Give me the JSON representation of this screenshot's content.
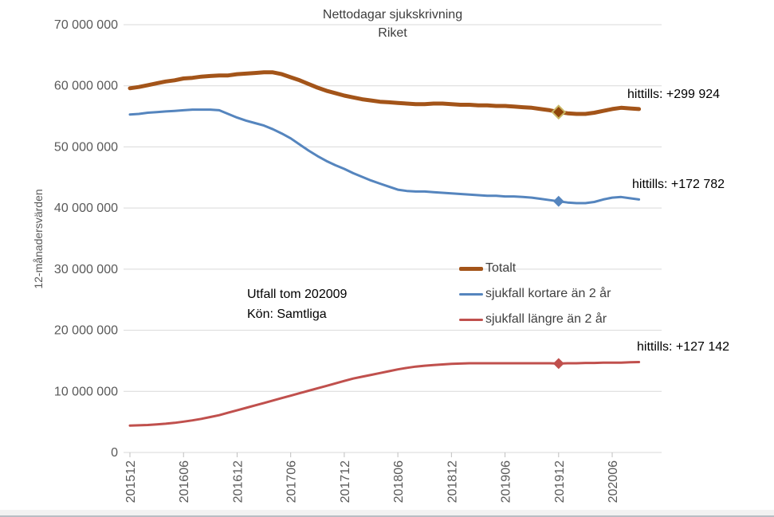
{
  "window": {
    "background": "#FFFFFF"
  },
  "chart_data": {
    "type": "line",
    "title": "Nettodagar sjukskrivning",
    "subtitle": "Riket",
    "ylabel": "12-månadersvärden",
    "xlabel": "",
    "grid": "horizontal",
    "legend_position": "center-right",
    "unit_multiplier": 1000000,
    "ylim_millions": [
      0,
      70
    ],
    "y_tick_values_millions": [
      0,
      10,
      20,
      30,
      40,
      50,
      60,
      70
    ],
    "y_tick_labels": [
      "0",
      "10 000 000",
      "20 000 000",
      "30 000 000",
      "40 000 000",
      "50 000 000",
      "60 000 000",
      "70 000 000"
    ],
    "x": [
      "201512",
      "201601",
      "201602",
      "201603",
      "201604",
      "201605",
      "201606",
      "201607",
      "201608",
      "201609",
      "201610",
      "201611",
      "201612",
      "201701",
      "201702",
      "201703",
      "201704",
      "201705",
      "201706",
      "201707",
      "201708",
      "201709",
      "201710",
      "201711",
      "201712",
      "201801",
      "201802",
      "201803",
      "201804",
      "201805",
      "201806",
      "201807",
      "201808",
      "201809",
      "201810",
      "201811",
      "201812",
      "201901",
      "201902",
      "201903",
      "201904",
      "201905",
      "201906",
      "201907",
      "201908",
      "201909",
      "201910",
      "201911",
      "201912",
      "202001",
      "202002",
      "202003",
      "202004",
      "202005",
      "202006",
      "202007",
      "202008",
      "202009"
    ],
    "x_ticks": [
      "201512",
      "201606",
      "201612",
      "201706",
      "201712",
      "201806",
      "201812",
      "201906",
      "201912",
      "202006"
    ],
    "marker_x": "201912",
    "series": [
      {
        "name": "Totalt",
        "color": "#A35419",
        "line_width": 5,
        "marker": {
          "shape": "diamond",
          "fill": "#8F450A",
          "stroke": "#C9B765",
          "size": 8
        },
        "annotation": "hittills: +299 924",
        "values_millions": [
          59.6,
          59.8,
          60.1,
          60.4,
          60.7,
          60.9,
          61.2,
          61.3,
          61.5,
          61.6,
          61.7,
          61.7,
          61.9,
          62.0,
          62.1,
          62.2,
          62.2,
          61.9,
          61.4,
          60.9,
          60.3,
          59.7,
          59.2,
          58.8,
          58.4,
          58.1,
          57.8,
          57.6,
          57.4,
          57.3,
          57.2,
          57.1,
          57.0,
          57.0,
          57.1,
          57.1,
          57.0,
          56.9,
          56.9,
          56.8,
          56.8,
          56.7,
          56.7,
          56.6,
          56.5,
          56.4,
          56.2,
          56.0,
          55.7,
          55.5,
          55.4,
          55.4,
          55.6,
          55.9,
          56.2,
          56.4,
          56.3,
          56.2
        ]
      },
      {
        "name": "sjukfall kortare än 2 år",
        "color": "#5585BE",
        "line_width": 3,
        "marker": {
          "shape": "diamond",
          "fill": "#5585BE",
          "stroke": "#5585BE",
          "size": 5.5
        },
        "annotation": "hittills: +172 782",
        "values_millions": [
          55.3,
          55.4,
          55.6,
          55.7,
          55.8,
          55.9,
          56.0,
          56.1,
          56.1,
          56.1,
          56.0,
          55.4,
          54.8,
          54.3,
          53.9,
          53.5,
          52.9,
          52.2,
          51.4,
          50.4,
          49.4,
          48.5,
          47.7,
          47.0,
          46.4,
          45.7,
          45.1,
          44.5,
          44.0,
          43.5,
          43.0,
          42.8,
          42.7,
          42.7,
          42.6,
          42.5,
          42.4,
          42.3,
          42.2,
          42.1,
          42.0,
          42.0,
          41.9,
          41.9,
          41.8,
          41.7,
          41.5,
          41.3,
          41.1,
          40.9,
          40.8,
          40.8,
          41.0,
          41.4,
          41.7,
          41.8,
          41.6,
          41.4
        ]
      },
      {
        "name": "sjukfall längre än 2 år",
        "color": "#C0504D",
        "line_width": 3,
        "marker": {
          "shape": "diamond",
          "fill": "#C0504D",
          "stroke": "#C0504D",
          "size": 5.5
        },
        "annotation": "hittills: +127 142",
        "values_millions": [
          4.4,
          4.45,
          4.5,
          4.6,
          4.7,
          4.85,
          5.05,
          5.25,
          5.5,
          5.8,
          6.1,
          6.5,
          6.9,
          7.3,
          7.7,
          8.1,
          8.5,
          8.9,
          9.3,
          9.7,
          10.1,
          10.5,
          10.9,
          11.3,
          11.7,
          12.1,
          12.4,
          12.7,
          13.0,
          13.3,
          13.6,
          13.85,
          14.05,
          14.2,
          14.3,
          14.4,
          14.5,
          14.55,
          14.6,
          14.6,
          14.6,
          14.6,
          14.6,
          14.6,
          14.6,
          14.6,
          14.6,
          14.6,
          14.55,
          14.6,
          14.6,
          14.65,
          14.65,
          14.7,
          14.7,
          14.7,
          14.75,
          14.8
        ]
      }
    ],
    "notes": [
      "Utfall tom 202009",
      "Kön: Samtliga"
    ],
    "colors": {
      "gridline": "#D9D9D9",
      "axis_tick": "#BFBFBF",
      "axis_label_text": "#595959",
      "title_text": "#3D3D3D",
      "annotation_text": "#000000"
    }
  }
}
